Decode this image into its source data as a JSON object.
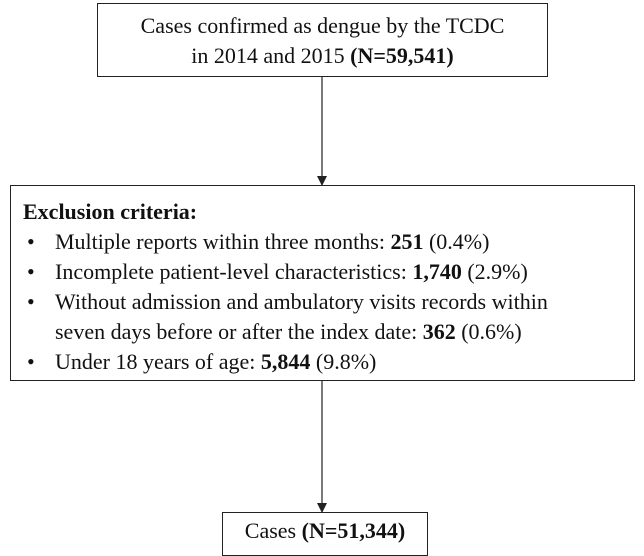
{
  "top_box": {
    "lines": [
      [
        {
          "text": "Cases confirmed as dengue by the TCDC"
        }
      ],
      [
        {
          "text": "in 2014 and 2015 "
        },
        {
          "text": "(N=59,541)",
          "bold": true
        }
      ]
    ]
  },
  "exclusion_box": {
    "heading": "Exclusion criteria:",
    "items": [
      {
        "lines": [
          [
            {
              "text": "Multiple reports within three months: "
            },
            {
              "text": "251",
              "bold": true
            },
            {
              "text": " (0.4%)"
            }
          ]
        ]
      },
      {
        "lines": [
          [
            {
              "text": "Incomplete patient-level characteristics: "
            },
            {
              "text": "1,740",
              "bold": true
            },
            {
              "text": " (2.9%)"
            }
          ]
        ]
      },
      {
        "lines": [
          [
            {
              "text": "Without admission and ambulatory visits records within"
            }
          ],
          [
            {
              "text": "seven days before or after the index date: "
            },
            {
              "text": "362",
              "bold": true
            },
            {
              "text": " (0.6%)"
            }
          ]
        ]
      },
      {
        "lines": [
          [
            {
              "text": "Under 18 years of age: "
            },
            {
              "text": "5,844",
              "bold": true
            },
            {
              "text": " (9.8%)"
            }
          ]
        ]
      }
    ]
  },
  "bottom_box": {
    "lines": [
      [
        {
          "text": "Cases "
        },
        {
          "text": "(N=51,344)",
          "bold": true
        }
      ]
    ]
  }
}
